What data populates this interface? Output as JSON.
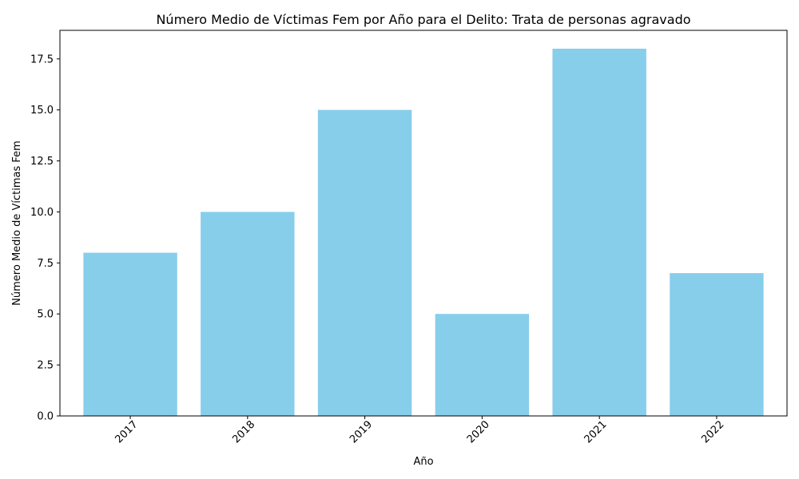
{
  "chart_data": {
    "type": "bar",
    "title": "Número Medio de Víctimas Fem por Año para el Delito: Trata de personas agravado",
    "xlabel": "Año",
    "ylabel": "Número Medio de Víctimas Fem",
    "categories": [
      "2017",
      "2018",
      "2019",
      "2020",
      "2021",
      "2022"
    ],
    "values": [
      8,
      10,
      15,
      5,
      18,
      7
    ],
    "ylim": [
      0,
      18.9
    ],
    "yticks": [
      0.0,
      2.5,
      5.0,
      7.5,
      10.0,
      12.5,
      15.0,
      17.5
    ],
    "ytick_labels": [
      "0.0",
      "2.5",
      "5.0",
      "7.5",
      "10.0",
      "12.5",
      "15.0",
      "17.5"
    ],
    "bar_color": "#87CEEB",
    "grid": false,
    "legend": "none",
    "xtick_rotation_deg": 45
  }
}
